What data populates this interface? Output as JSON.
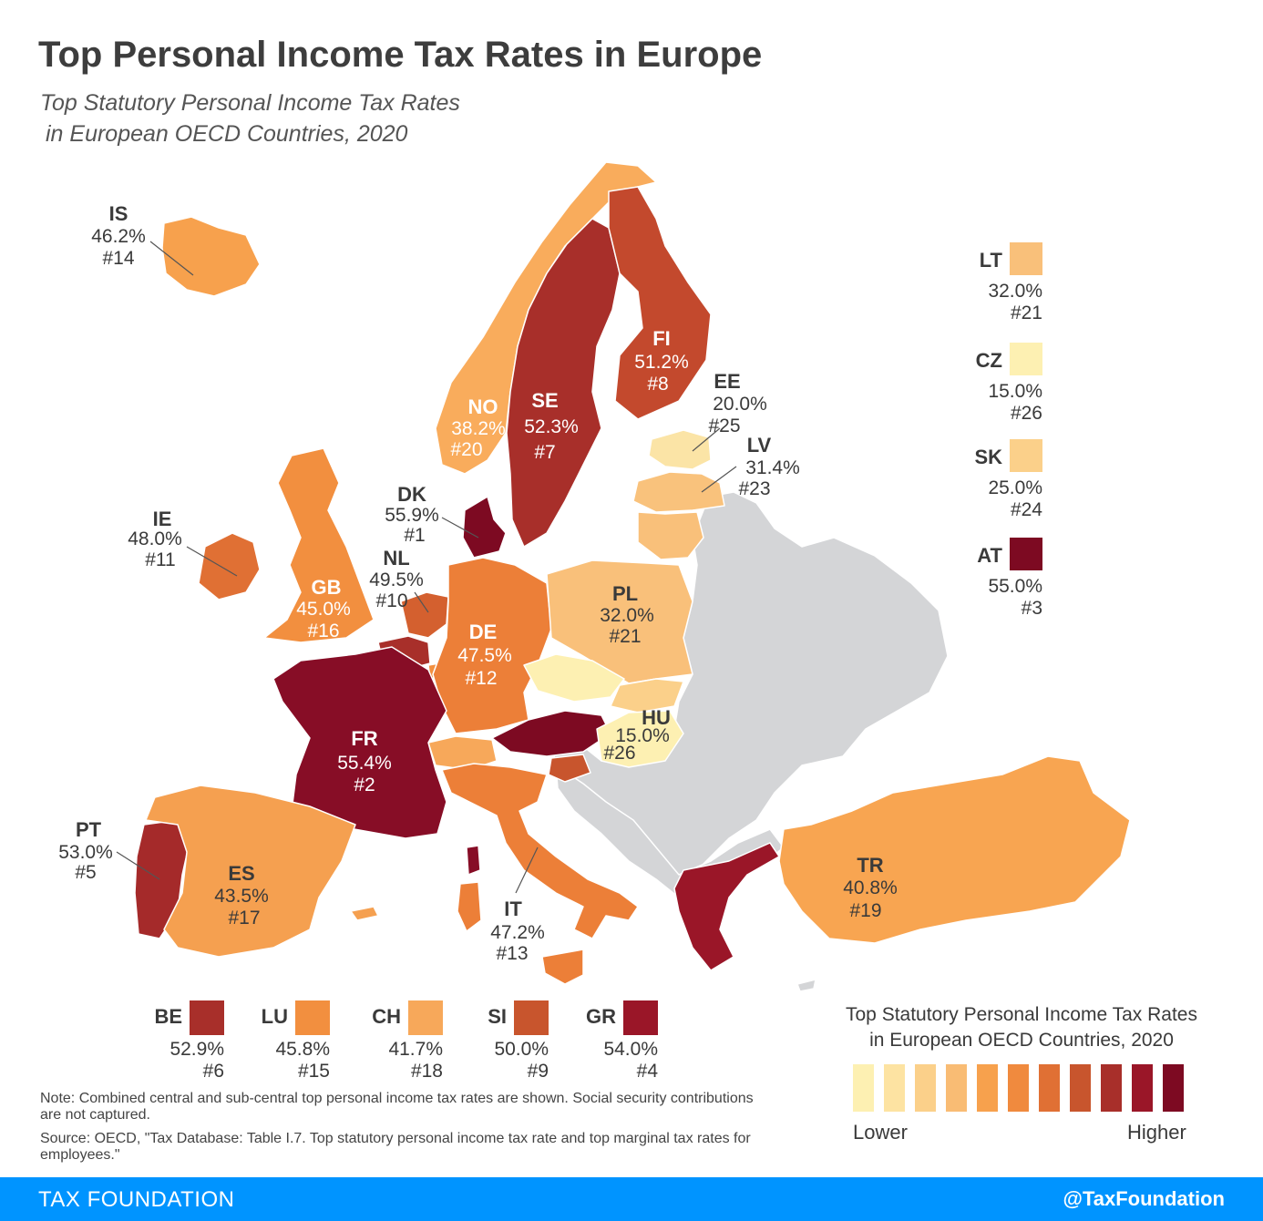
{
  "title": "Top Personal Income Tax Rates in Europe",
  "subtitle_line1": "Top Statutory Personal Income Tax Rates",
  "subtitle_line2": "in European OECD Countries, 2020",
  "colors": {
    "background_land": "#d4d5d7",
    "border": "#ffffff",
    "ramp": [
      "#fdf0b2",
      "#fde3a2",
      "#fbd08a",
      "#f9bc74",
      "#f7a14d",
      "#f08a3e",
      "#e07034",
      "#c8552d",
      "#a82f2a",
      "#9a1628",
      "#7d0a22"
    ]
  },
  "countries": {
    "IS": {
      "code": "IS",
      "rate": "46.2%",
      "rank": "#14",
      "color": "#f7a14d"
    },
    "NO": {
      "code": "NO",
      "rate": "38.2%",
      "rank": "#20",
      "color": "#f9ac5c"
    },
    "SE": {
      "code": "SE",
      "rate": "52.3%",
      "rank": "#7",
      "color": "#a82f2a"
    },
    "FI": {
      "code": "FI",
      "rate": "51.2%",
      "rank": "#8",
      "color": "#c3492d"
    },
    "EE": {
      "code": "EE",
      "rate": "20.0%",
      "rank": "#25",
      "color": "#fbe4a6"
    },
    "LV": {
      "code": "LV",
      "rate": "31.4%",
      "rank": "#23",
      "color": "#f9c27c"
    },
    "DK": {
      "code": "DK",
      "rate": "55.9%",
      "rank": "#1",
      "color": "#7d0a22"
    },
    "IE": {
      "code": "IE",
      "rate": "48.0%",
      "rank": "#11",
      "color": "#e07034"
    },
    "GB": {
      "code": "GB",
      "rate": "45.0%",
      "rank": "#16",
      "color": "#f28f3f"
    },
    "NL": {
      "code": "NL",
      "rate": "49.5%",
      "rank": "#10",
      "color": "#d4602f"
    },
    "DE": {
      "code": "DE",
      "rate": "47.5%",
      "rank": "#12",
      "color": "#ec7f38"
    },
    "PL": {
      "code": "PL",
      "rate": "32.0%",
      "rank": "#21",
      "color": "#f9c07a"
    },
    "HU": {
      "code": "HU",
      "rate": "15.0%",
      "rank": "#26",
      "color": "#fdf0b2"
    },
    "FR": {
      "code": "FR",
      "rate": "55.4%",
      "rank": "#2",
      "color": "#870d26"
    },
    "PT": {
      "code": "PT",
      "rate": "53.0%",
      "rank": "#5",
      "color": "#a52a2a"
    },
    "ES": {
      "code": "ES",
      "rate": "43.5%",
      "rank": "#17",
      "color": "#f5a050"
    },
    "IT": {
      "code": "IT",
      "rate": "47.2%",
      "rank": "#13",
      "color": "#ec7f38"
    },
    "TR": {
      "code": "TR",
      "rate": "40.8%",
      "rank": "#19",
      "color": "#f8a551"
    }
  },
  "side_keys": [
    {
      "code": "LT",
      "rate": "32.0%",
      "rank": "#21",
      "color": "#f9c07a"
    },
    {
      "code": "CZ",
      "rate": "15.0%",
      "rank": "#26",
      "color": "#fdf0b2"
    },
    {
      "code": "SK",
      "rate": "25.0%",
      "rank": "#24",
      "color": "#fbd08a"
    },
    {
      "code": "AT",
      "rate": "55.0%",
      "rank": "#3",
      "color": "#7d0a22"
    }
  ],
  "bottom_keys": [
    {
      "code": "BE",
      "rate": "52.9%",
      "rank": "#6",
      "color": "#a82f2a"
    },
    {
      "code": "LU",
      "rate": "45.8%",
      "rank": "#15",
      "color": "#f28f3f"
    },
    {
      "code": "CH",
      "rate": "41.7%",
      "rank": "#18",
      "color": "#f7a85a"
    },
    {
      "code": "SI",
      "rate": "50.0%",
      "rank": "#9",
      "color": "#c8552d"
    },
    {
      "code": "GR",
      "rate": "54.0%",
      "rank": "#4",
      "color": "#9a1628"
    }
  ],
  "legend": {
    "title_line1": "Top Statutory Personal Income Tax Rates",
    "title_line2": "in European OECD Countries, 2020",
    "lower": "Lower",
    "higher": "Higher"
  },
  "note": "Note: Combined central and sub-central top personal income tax rates are shown. Social security contributions are not captured.",
  "source": "Source: OECD, \"Tax Database: Table I.7. Top statutory personal income tax rate and top marginal tax rates for employees.\"",
  "footer": {
    "brand": "TAX FOUNDATION",
    "handle": "@TaxFoundation"
  }
}
